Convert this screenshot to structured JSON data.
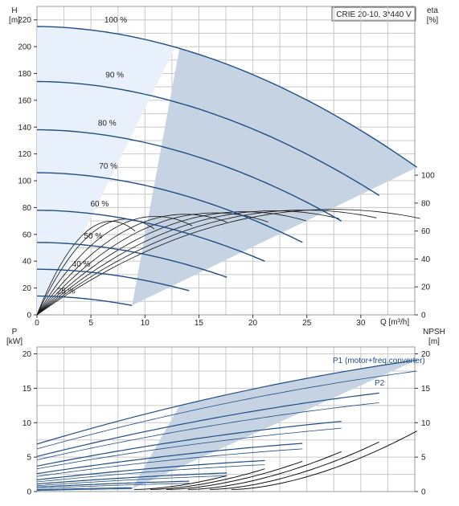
{
  "title": "CRIE 20-10, 3*440 V",
  "chart_data": [
    {
      "type": "line",
      "name": "head-and-efficiency",
      "xlabel": "Q [m³/h]",
      "xlim": [
        0,
        35
      ],
      "xticks": [
        0,
        5,
        10,
        15,
        20,
        25,
        30
      ],
      "ylabel_left": [
        "H",
        "[m]"
      ],
      "ylim_left": [
        0,
        230
      ],
      "yticks_left": [
        0,
        20,
        40,
        60,
        80,
        100,
        120,
        140,
        160,
        180,
        200,
        220
      ],
      "ylabel_right": [
        "eta",
        "[%]"
      ],
      "ylim_right": [
        0,
        100
      ],
      "yticks_right": [
        0,
        20,
        40,
        60,
        80,
        100
      ],
      "grid": true,
      "head_curves": [
        {
          "label": "100 %",
          "speed": 1.0,
          "H0": 215,
          "H_end": 110,
          "Q_end": 35.2,
          "label_q": 7.3,
          "label_h": 218
        },
        {
          "label": "90 %",
          "speed": 0.9,
          "H0": 174,
          "H_end": 89,
          "Q_end": 31.7,
          "label_q": 7.2,
          "label_h": 177
        },
        {
          "label": "80 %",
          "speed": 0.8,
          "H0": 138,
          "H_end": 70,
          "Q_end": 28.2,
          "label_q": 6.5,
          "label_h": 141
        },
        {
          "label": "70 %",
          "speed": 0.7,
          "H0": 106,
          "H_end": 54,
          "Q_end": 24.6,
          "label_q": 6.6,
          "label_h": 109
        },
        {
          "label": "60 %",
          "speed": 0.6,
          "H0": 78,
          "H_end": 40,
          "Q_end": 21.1,
          "label_q": 5.8,
          "label_h": 81
        },
        {
          "label": "50 %",
          "speed": 0.5,
          "H0": 54,
          "H_end": 28,
          "Q_end": 17.6,
          "label_q": 5.2,
          "label_h": 57
        },
        {
          "label": "40 %",
          "speed": 0.4,
          "H0": 34,
          "H_end": 18,
          "Q_end": 14.1,
          "label_q": 4.1,
          "label_h": 36
        },
        {
          "label": "25 %",
          "speed": 0.25,
          "H0": 14,
          "H_end": 7,
          "Q_end": 8.8,
          "label_q": 2.7,
          "label_h": 16
        }
      ],
      "efficiency_curves": {
        "speeds": [
          1.0,
          0.9,
          0.8,
          0.7,
          0.6,
          0.5,
          0.4,
          0.3,
          0.25
        ],
        "eta_max": [
          75.5,
          75,
          74.5,
          73.8,
          73,
          72,
          70.5,
          68.5,
          67
        ]
      }
    },
    {
      "type": "line",
      "name": "power-and-npsh",
      "xlim": [
        0,
        35
      ],
      "ylabel_left": [
        "P",
        "[kW]"
      ],
      "ylim_left": [
        0,
        21
      ],
      "yticks_left": [
        0,
        5,
        10,
        15,
        20
      ],
      "ylabel_right": [
        "NPSH",
        "[m]"
      ],
      "ylim_right": [
        0,
        21
      ],
      "yticks_right": [
        0,
        5,
        10,
        15,
        20
      ],
      "grid": true,
      "series_labels": [
        "P1 (motor+freq.converter)",
        "P2"
      ],
      "power_curves": [
        {
          "speed": 1.0,
          "P1_start": 6.9,
          "P1_end": 19.1,
          "P2_start": 6.2,
          "P2_end": 17.5,
          "Q_end": 35.2
        },
        {
          "speed": 0.9,
          "P1_start": 5.1,
          "P1_end": 14.3,
          "P2_start": 4.6,
          "P2_end": 12.9,
          "Q_end": 31.7
        },
        {
          "speed": 0.8,
          "P1_start": 3.7,
          "P1_end": 10.2,
          "P2_start": 3.3,
          "P2_end": 9.2,
          "Q_end": 28.2
        },
        {
          "speed": 0.7,
          "P1_start": 2.6,
          "P1_end": 7.0,
          "P2_start": 2.2,
          "P2_end": 6.2,
          "Q_end": 24.6
        },
        {
          "speed": 0.6,
          "P1_start": 1.7,
          "P1_end": 4.5,
          "P2_start": 1.4,
          "P2_end": 3.9,
          "Q_end": 21.1
        },
        {
          "speed": 0.5,
          "P1_start": 1.1,
          "P1_end": 2.7,
          "P2_start": 0.85,
          "P2_end": 2.3,
          "Q_end": 17.6
        },
        {
          "speed": 0.4,
          "P1_start": 0.65,
          "P1_end": 1.5,
          "P2_start": 0.45,
          "P2_end": 1.2,
          "Q_end": 14.1
        },
        {
          "speed": 0.25,
          "P1_start": 0.25,
          "P1_end": 0.55,
          "P2_start": 0.15,
          "P2_end": 0.4,
          "Q_end": 8.8
        }
      ],
      "npsh_curves": [
        {
          "speed": 1.0,
          "Q_start": 18,
          "npsh_end": 8.8,
          "Q_end": 35.2
        },
        {
          "speed": 0.9,
          "Q_start": 16,
          "npsh_end": 7.2,
          "Q_end": 31.7
        },
        {
          "speed": 0.8,
          "Q_start": 14,
          "npsh_end": 5.8,
          "Q_end": 28.2
        },
        {
          "speed": 0.7,
          "Q_start": 12,
          "npsh_end": 4.4,
          "Q_end": 24.6
        },
        {
          "speed": 0.6,
          "Q_start": 10.5,
          "npsh_end": 3.3,
          "Q_end": 21.1
        },
        {
          "speed": 0.5,
          "Q_start": 9,
          "npsh_end": 2.3,
          "Q_end": 17.6
        }
      ]
    }
  ],
  "colors": {
    "head_curve": "#1f4e86",
    "power_curve": "#1f4e86",
    "efficiency_curve": "#111111",
    "npsh_curve": "#111111",
    "operating_area": "#c5d3e2",
    "low_area": "#e8f1fb",
    "series_label": "#1f4e86"
  }
}
